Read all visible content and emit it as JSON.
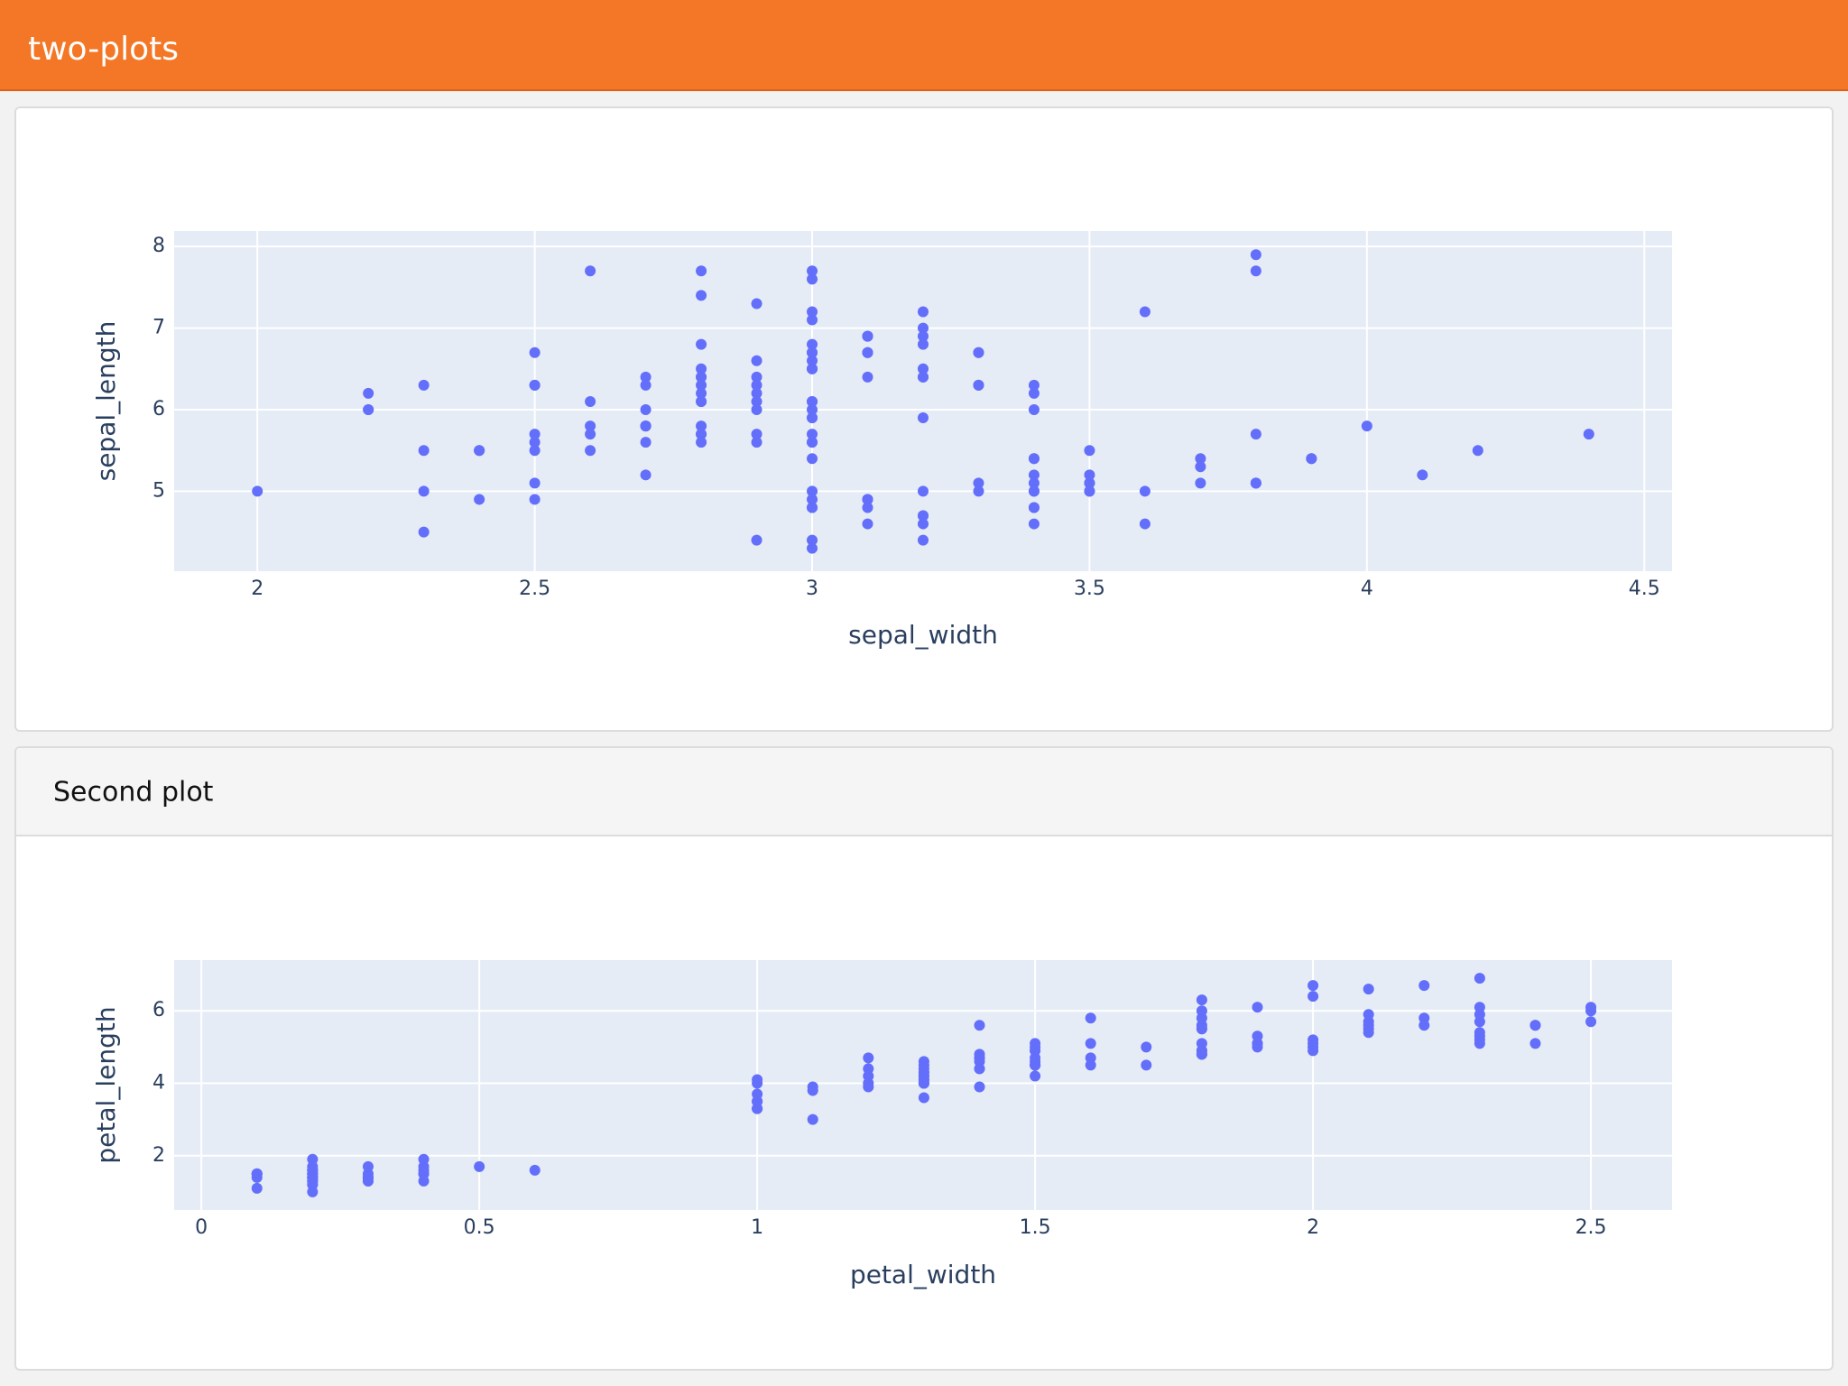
{
  "header": {
    "title": "two-plots"
  },
  "chart_data": [
    {
      "type": "scatter",
      "x_label": "sepal_width",
      "y_label": "sepal_length",
      "color": "#636efa",
      "grid": true,
      "xlim": [
        1.85,
        4.55
      ],
      "ylim": [
        4.02,
        8.19
      ],
      "xticks": [
        2,
        2.5,
        3,
        3.5,
        4,
        4.5
      ],
      "yticks": [
        5,
        6,
        7,
        8
      ],
      "x": [
        3.5,
        3.0,
        3.2,
        3.1,
        3.6,
        3.9,
        3.4,
        3.4,
        2.9,
        3.1,
        3.7,
        3.4,
        3.0,
        3.0,
        4.0,
        4.4,
        3.9,
        3.5,
        3.8,
        3.8,
        3.4,
        3.7,
        3.6,
        3.3,
        3.4,
        3.0,
        3.4,
        3.5,
        3.4,
        3.2,
        3.1,
        3.4,
        4.1,
        4.2,
        3.1,
        3.2,
        3.5,
        3.1,
        3.0,
        3.4,
        3.5,
        2.3,
        3.2,
        3.5,
        3.8,
        3.0,
        3.8,
        3.2,
        3.7,
        3.3,
        3.2,
        3.2,
        3.1,
        2.3,
        2.8,
        2.8,
        3.3,
        2.4,
        2.9,
        2.7,
        2.0,
        3.0,
        2.2,
        2.9,
        2.9,
        3.1,
        3.0,
        2.7,
        2.2,
        2.5,
        3.2,
        2.8,
        2.5,
        2.8,
        2.9,
        3.0,
        2.8,
        3.0,
        2.9,
        2.6,
        2.4,
        2.4,
        2.7,
        2.7,
        3.0,
        3.4,
        3.1,
        2.3,
        3.0,
        2.5,
        2.6,
        3.0,
        2.6,
        2.3,
        2.7,
        3.0,
        2.9,
        2.9,
        2.5,
        2.8,
        3.3,
        2.7,
        3.0,
        2.9,
        3.0,
        3.0,
        2.5,
        2.9,
        2.5,
        3.6,
        3.2,
        2.7,
        3.0,
        2.5,
        2.8,
        3.2,
        3.0,
        3.8,
        2.6,
        2.2,
        3.2,
        2.8,
        2.8,
        2.7,
        3.3,
        3.2,
        2.8,
        3.0,
        2.8,
        3.0,
        2.8,
        3.8,
        2.8,
        2.8,
        2.6,
        3.0,
        3.4,
        3.1,
        3.0,
        3.1,
        3.1,
        3.1,
        2.7,
        3.2,
        3.3,
        3.0,
        2.5,
        3.0,
        3.4,
        3.0
      ],
      "values": [
        5.1,
        4.9,
        4.7,
        4.6,
        5.0,
        5.4,
        4.6,
        5.0,
        4.4,
        4.9,
        5.4,
        4.8,
        4.8,
        4.3,
        5.8,
        5.7,
        5.4,
        5.1,
        5.7,
        5.1,
        5.4,
        5.1,
        4.6,
        5.1,
        4.8,
        5.0,
        5.0,
        5.2,
        5.2,
        4.7,
        4.8,
        5.4,
        5.2,
        5.5,
        4.9,
        5.0,
        5.5,
        4.9,
        4.4,
        5.1,
        5.0,
        4.5,
        4.4,
        5.0,
        5.1,
        4.8,
        5.1,
        4.6,
        5.3,
        5.0,
        7.0,
        6.4,
        6.9,
        5.5,
        6.5,
        5.7,
        6.3,
        4.9,
        6.6,
        5.2,
        5.0,
        5.9,
        6.0,
        6.1,
        5.6,
        6.7,
        5.6,
        5.8,
        6.2,
        5.6,
        5.9,
        6.1,
        6.3,
        6.1,
        6.4,
        6.6,
        6.8,
        6.7,
        6.0,
        5.7,
        5.5,
        5.5,
        5.8,
        6.0,
        5.4,
        6.0,
        6.7,
        6.3,
        5.6,
        5.5,
        5.5,
        6.1,
        5.8,
        5.0,
        5.6,
        5.7,
        5.7,
        6.2,
        5.1,
        5.7,
        6.3,
        5.8,
        7.1,
        6.3,
        6.5,
        7.6,
        4.9,
        7.3,
        6.7,
        7.2,
        6.5,
        6.4,
        6.8,
        5.7,
        5.8,
        6.4,
        6.5,
        7.7,
        7.7,
        6.0,
        6.9,
        5.6,
        7.7,
        6.3,
        6.7,
        7.2,
        6.2,
        6.1,
        6.4,
        7.2,
        7.4,
        7.9,
        6.4,
        6.3,
        6.1,
        7.7,
        6.3,
        6.4,
        6.0,
        6.9,
        6.7,
        6.9,
        5.8,
        6.8,
        6.7,
        6.7,
        6.3,
        6.5,
        6.2,
        5.9
      ]
    },
    {
      "type": "scatter",
      "title": "Second plot",
      "x_label": "petal_width",
      "y_label": "petal_length",
      "color": "#636efa",
      "grid": true,
      "xlim": [
        -0.049,
        2.646
      ],
      "ylim": [
        0.5,
        7.4
      ],
      "xticks": [
        0,
        0.5,
        1,
        1.5,
        2,
        2.5
      ],
      "yticks": [
        2,
        4,
        6
      ],
      "x": [
        0.2,
        0.2,
        0.2,
        0.2,
        0.2,
        0.4,
        0.3,
        0.2,
        0.2,
        0.1,
        0.2,
        0.2,
        0.1,
        0.1,
        0.2,
        0.4,
        0.4,
        0.3,
        0.3,
        0.3,
        0.2,
        0.4,
        0.2,
        0.5,
        0.2,
        0.2,
        0.4,
        0.2,
        0.2,
        0.2,
        0.2,
        0.4,
        0.1,
        0.2,
        0.1,
        0.2,
        0.2,
        0.1,
        0.2,
        0.2,
        0.3,
        0.3,
        0.2,
        0.6,
        0.4,
        0.3,
        0.2,
        0.2,
        0.2,
        0.2,
        1.4,
        1.5,
        1.5,
        1.3,
        1.5,
        1.3,
        1.6,
        1.0,
        1.3,
        1.4,
        1.0,
        1.5,
        1.0,
        1.4,
        1.3,
        1.4,
        1.5,
        1.0,
        1.5,
        1.1,
        1.8,
        1.3,
        1.5,
        1.2,
        1.3,
        1.4,
        1.4,
        1.7,
        1.5,
        1.0,
        1.1,
        1.0,
        1.2,
        1.6,
        1.5,
        1.6,
        1.5,
        1.3,
        1.3,
        1.3,
        1.2,
        1.4,
        1.2,
        1.0,
        1.3,
        1.2,
        1.3,
        1.3,
        1.1,
        1.3,
        2.5,
        1.9,
        2.1,
        1.8,
        2.2,
        2.1,
        1.7,
        1.8,
        1.8,
        2.5,
        2.0,
        1.9,
        2.1,
        2.0,
        2.4,
        2.3,
        1.8,
        2.2,
        2.3,
        1.5,
        2.3,
        2.0,
        2.0,
        1.8,
        2.1,
        1.8,
        1.8,
        1.8,
        2.1,
        1.6,
        1.9,
        2.0,
        2.2,
        1.5,
        1.4,
        2.3,
        2.4,
        1.8,
        1.8,
        2.1,
        2.4,
        2.3,
        1.9,
        2.3,
        2.5,
        2.3,
        1.9,
        2.0,
        2.3,
        1.8
      ],
      "values": [
        1.4,
        1.4,
        1.3,
        1.5,
        1.4,
        1.7,
        1.4,
        1.5,
        1.4,
        1.5,
        1.5,
        1.6,
        1.4,
        1.1,
        1.2,
        1.5,
        1.3,
        1.4,
        1.7,
        1.5,
        1.7,
        1.5,
        1.0,
        1.7,
        1.9,
        1.6,
        1.6,
        1.5,
        1.4,
        1.6,
        1.6,
        1.5,
        1.5,
        1.4,
        1.5,
        1.2,
        1.3,
        1.5,
        1.3,
        1.5,
        1.3,
        1.3,
        1.3,
        1.6,
        1.9,
        1.4,
        1.6,
        1.4,
        1.5,
        1.4,
        4.7,
        4.5,
        4.9,
        4.0,
        4.6,
        4.5,
        4.7,
        3.3,
        4.6,
        3.9,
        3.5,
        4.2,
        4.0,
        4.7,
        3.6,
        4.4,
        4.5,
        4.1,
        4.5,
        3.9,
        4.8,
        4.0,
        4.9,
        4.7,
        4.3,
        4.4,
        4.8,
        5.0,
        4.5,
        3.5,
        3.8,
        3.7,
        3.9,
        5.1,
        4.5,
        4.5,
        4.7,
        4.4,
        4.1,
        4.0,
        4.4,
        4.6,
        4.0,
        3.3,
        4.2,
        4.2,
        4.2,
        4.3,
        3.0,
        4.1,
        6.0,
        5.1,
        5.9,
        5.6,
        5.8,
        6.6,
        4.5,
        6.3,
        5.8,
        6.1,
        5.1,
        5.3,
        5.5,
        5.0,
        5.1,
        5.3,
        5.5,
        6.7,
        6.9,
        5.0,
        5.7,
        4.9,
        6.7,
        4.9,
        5.7,
        6.0,
        4.8,
        4.9,
        5.6,
        5.8,
        6.1,
        6.4,
        5.6,
        5.1,
        5.6,
        6.1,
        5.6,
        5.5,
        4.8,
        5.4,
        5.6,
        5.1,
        5.1,
        5.9,
        5.7,
        5.2,
        5.0,
        5.2,
        5.4,
        5.1
      ]
    }
  ]
}
